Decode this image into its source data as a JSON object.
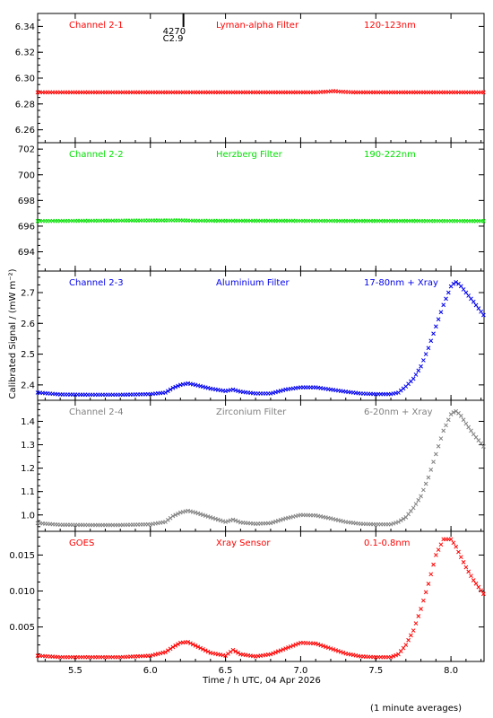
{
  "chart_data": {
    "type": "scatter",
    "xlabel": "Time / h UTC, 04 Apr 2026",
    "ylabel": "Calibrated Signal / (mW m⁻²)",
    "footnote": "(1 minute averages)",
    "xlim": [
      5.25,
      8.22
    ],
    "xticks": [
      "5.5",
      "6.0",
      "6.5",
      "7.0",
      "7.5",
      "8.0"
    ],
    "xtick_values": [
      5.5,
      6.0,
      6.5,
      7.0,
      7.5,
      8.0
    ],
    "flare_marker": {
      "x": 6.22,
      "label_top": "4270",
      "label_bottom": "C2.9"
    },
    "panels": [
      {
        "channel": "Channel 2-1",
        "filter": "Lyman-alpha Filter",
        "band": "120-123nm",
        "color": "#ff0000",
        "ylim": [
          6.25,
          6.35
        ],
        "yticks": [
          "6.26",
          "6.28",
          "6.30",
          "6.32",
          "6.34"
        ],
        "ytick_values": [
          6.26,
          6.28,
          6.3,
          6.32,
          6.34
        ],
        "series": {
          "x": [
            5.25,
            7.1,
            7.18,
            7.22,
            7.26,
            7.35,
            8.22
          ],
          "y": [
            6.289,
            6.289,
            6.2895,
            6.29,
            6.2895,
            6.289,
            6.289
          ]
        }
      },
      {
        "channel": "Channel 2-2",
        "filter": "Herzberg Filter",
        "band": "190-222nm",
        "color": "#00e000",
        "ylim": [
          692.5,
          702.5
        ],
        "yticks": [
          "694",
          "696",
          "698",
          "700",
          "702"
        ],
        "ytick_values": [
          694,
          696,
          698,
          700,
          702
        ],
        "series": {
          "x": [
            5.25,
            6.2,
            6.3,
            8.22
          ],
          "y": [
            696.4,
            696.45,
            696.42,
            696.4
          ]
        }
      },
      {
        "channel": "Channel 2-3",
        "filter": "Aluminium Filter",
        "band": "17-80nm + Xray",
        "color": "#0000ee",
        "ylim": [
          2.35,
          2.77
        ],
        "yticks": [
          "2.4",
          "2.5",
          "2.6",
          "2.7"
        ],
        "ytick_values": [
          2.4,
          2.5,
          2.6,
          2.7
        ],
        "series": {
          "x": [
            5.25,
            5.4,
            5.6,
            5.8,
            6.0,
            6.1,
            6.15,
            6.2,
            6.25,
            6.3,
            6.4,
            6.5,
            6.55,
            6.6,
            6.7,
            6.8,
            6.9,
            7.0,
            7.1,
            7.2,
            7.3,
            7.4,
            7.5,
            7.6,
            7.65,
            7.7,
            7.75,
            7.8,
            7.85,
            7.9,
            7.95,
            8.0,
            8.03,
            8.06,
            8.1,
            8.15,
            8.22
          ],
          "y": [
            2.375,
            2.369,
            2.368,
            2.368,
            2.37,
            2.375,
            2.39,
            2.4,
            2.405,
            2.4,
            2.388,
            2.38,
            2.385,
            2.378,
            2.372,
            2.372,
            2.385,
            2.392,
            2.392,
            2.385,
            2.378,
            2.372,
            2.37,
            2.37,
            2.375,
            2.395,
            2.42,
            2.46,
            2.52,
            2.59,
            2.66,
            2.72,
            2.735,
            2.725,
            2.7,
            2.67,
            2.625
          ]
        }
      },
      {
        "channel": "Channel 2-4",
        "filter": "Zirconium Filter",
        "band": "6-20nm + Xray",
        "color": "#808080",
        "ylim": [
          0.93,
          1.49
        ],
        "yticks": [
          "1.0",
          "1.1",
          "1.2",
          "1.3",
          "1.4"
        ],
        "ytick_values": [
          1.0,
          1.1,
          1.2,
          1.3,
          1.4
        ],
        "series": {
          "x": [
            5.25,
            5.4,
            5.6,
            5.8,
            6.0,
            6.1,
            6.15,
            6.2,
            6.25,
            6.3,
            6.4,
            6.5,
            6.55,
            6.6,
            6.7,
            6.8,
            6.9,
            7.0,
            7.1,
            7.2,
            7.3,
            7.4,
            7.5,
            7.6,
            7.65,
            7.7,
            7.75,
            7.8,
            7.85,
            7.9,
            7.95,
            8.0,
            8.03,
            8.06,
            8.1,
            8.15,
            8.22
          ],
          "y": [
            0.965,
            0.958,
            0.957,
            0.957,
            0.96,
            0.97,
            0.995,
            1.01,
            1.018,
            1.01,
            0.99,
            0.97,
            0.98,
            0.968,
            0.962,
            0.965,
            0.985,
            1.0,
            0.998,
            0.985,
            0.97,
            0.962,
            0.96,
            0.96,
            0.97,
            0.99,
            1.03,
            1.08,
            1.16,
            1.26,
            1.36,
            1.43,
            1.445,
            1.43,
            1.39,
            1.345,
            1.29
          ]
        }
      },
      {
        "channel": "GOES",
        "filter": "Xray Sensor",
        "band": "0.1-0.8nm",
        "color": "#ff0000",
        "ylim": [
          0.0002,
          0.0183
        ],
        "yticks": [
          "0.005",
          "0.010",
          "0.015"
        ],
        "ytick_values": [
          0.005,
          0.01,
          0.015
        ],
        "series": {
          "x": [
            5.25,
            5.4,
            5.6,
            5.8,
            6.0,
            6.1,
            6.15,
            6.2,
            6.25,
            6.3,
            6.4,
            6.5,
            6.55,
            6.6,
            6.7,
            6.8,
            6.9,
            7.0,
            7.1,
            7.2,
            7.3,
            7.4,
            7.5,
            7.6,
            7.65,
            7.7,
            7.75,
            7.8,
            7.85,
            7.9,
            7.95,
            8.0,
            8.03,
            8.06,
            8.1,
            8.15,
            8.22
          ],
          "y": [
            0.001,
            0.0008,
            0.0008,
            0.0008,
            0.001,
            0.0015,
            0.0022,
            0.0028,
            0.0029,
            0.0024,
            0.0014,
            0.001,
            0.0018,
            0.0012,
            0.0009,
            0.0012,
            0.002,
            0.0028,
            0.0027,
            0.002,
            0.0013,
            0.0009,
            0.0008,
            0.0008,
            0.0012,
            0.0025,
            0.0045,
            0.0075,
            0.011,
            0.015,
            0.0172,
            0.0172,
            0.0163,
            0.015,
            0.0133,
            0.0115,
            0.0095
          ]
        }
      }
    ]
  }
}
